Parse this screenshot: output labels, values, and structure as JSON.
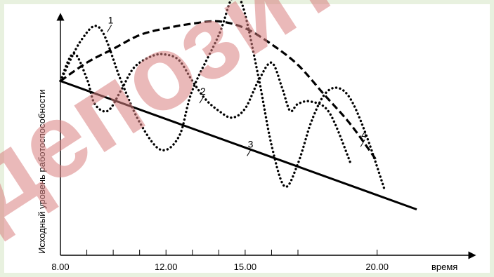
{
  "chart_data": {
    "type": "line",
    "xlabel": "время",
    "ylabel": "Исходный уровень работоспособности",
    "xlim": [
      8,
      21.5
    ],
    "ylim": [
      0,
      100
    ],
    "ticks": [
      {
        "x": 8,
        "label": "8.00"
      },
      {
        "x": 12,
        "label": "12.00"
      },
      {
        "x": 15,
        "label": "15.00"
      },
      {
        "x": 20,
        "label": "20.00"
      }
    ],
    "minor_ticks": [
      9,
      10,
      11,
      13,
      14,
      16,
      17
    ],
    "series": [
      {
        "name": "1",
        "style": "dashed",
        "points": [
          [
            8,
            76
          ],
          [
            9,
            84
          ],
          [
            10,
            90
          ],
          [
            11,
            96
          ],
          [
            12,
            99
          ],
          [
            13,
            101
          ],
          [
            14,
            102
          ],
          [
            15,
            99
          ],
          [
            16,
            92
          ],
          [
            17,
            83
          ],
          [
            18,
            70
          ],
          [
            19,
            57
          ],
          [
            20,
            41
          ]
        ]
      },
      {
        "name": "2",
        "style": "dotted",
        "points": [
          [
            8,
            76
          ],
          [
            8.5,
            88
          ],
          [
            9,
            77
          ],
          [
            9.3,
            66
          ],
          [
            9.8,
            63
          ],
          [
            10.3,
            72
          ],
          [
            10.8,
            82
          ],
          [
            11.5,
            87
          ],
          [
            12,
            87.5
          ],
          [
            12.5,
            85
          ],
          [
            13,
            76
          ],
          [
            13.5,
            68
          ],
          [
            14,
            63
          ],
          [
            14.5,
            60
          ],
          [
            15,
            64
          ],
          [
            15.5,
            76
          ],
          [
            16,
            84
          ],
          [
            16.4,
            73
          ],
          [
            16.7,
            63
          ],
          [
            17,
            66
          ],
          [
            17.5,
            67
          ],
          [
            18.2,
            62
          ],
          [
            19,
            40
          ]
        ]
      },
      {
        "name": "3",
        "style": "solid",
        "points": [
          [
            8,
            76
          ],
          [
            21.5,
            20
          ]
        ]
      },
      {
        "name": "4",
        "style": "dotted",
        "points": [
          [
            8,
            76
          ],
          [
            8.8,
            94
          ],
          [
            9.5,
            99
          ],
          [
            10.3,
            76
          ],
          [
            11,
            58
          ],
          [
            11.8,
            46
          ],
          [
            12.5,
            52
          ],
          [
            13,
            72
          ],
          [
            14,
            96
          ],
          [
            14.5,
            112
          ],
          [
            14.9,
            109
          ],
          [
            15.5,
            78
          ],
          [
            16,
            48
          ],
          [
            16.5,
            30
          ],
          [
            17,
            40
          ],
          [
            17.5,
            58
          ],
          [
            18,
            70
          ],
          [
            18.5,
            73
          ],
          [
            19,
            68
          ],
          [
            19.6,
            52
          ],
          [
            20.3,
            28
          ]
        ]
      }
    ],
    "curve_labels": [
      {
        "text": "1",
        "x": 9.8,
        "y": 101
      },
      {
        "text": "2",
        "x": 13.3,
        "y": 70
      },
      {
        "text": "3",
        "x": 15.1,
        "y": 47
      },
      {
        "text": "4",
        "x": 19.4,
        "y": 51
      }
    ]
  },
  "watermark": {
    "text": "депозит"
  }
}
